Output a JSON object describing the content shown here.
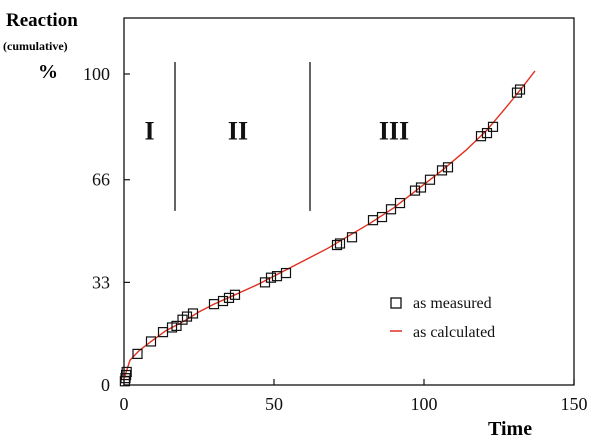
{
  "chart_data": {
    "type": "scatter",
    "ylabel_lines": [
      "Reaction",
      "(cumulative)",
      "%"
    ],
    "xlabel": "Time",
    "xlim": [
      0,
      150
    ],
    "ylim": [
      0,
      100
    ],
    "x_ticks": [
      0,
      50,
      100,
      150
    ],
    "y_ticks": [
      0,
      33,
      66,
      100
    ],
    "x_tick_labels": [
      "0",
      "50",
      "100",
      "150"
    ],
    "y_tick_labels": [
      "0",
      "33",
      "66",
      "100"
    ],
    "regions": [
      {
        "label": "I",
        "label_x": 8.5,
        "label_y": 79
      },
      {
        "label": "II",
        "label_x": 38,
        "label_y": 79
      },
      {
        "label": "III",
        "label_x": 90,
        "label_y": 79
      }
    ],
    "region_boundaries": [
      {
        "x": 17,
        "y_start": 56,
        "y_end": 100
      },
      {
        "x": 62,
        "y_start": 56,
        "y_end": 100
      }
    ],
    "legend": {
      "position": "lower-right",
      "entries": [
        {
          "label": "as measured",
          "marker": "square"
        },
        {
          "label": "as calculated",
          "marker": "line"
        }
      ]
    },
    "series": [
      {
        "name": "as measured",
        "marker": "square",
        "color": "#111111",
        "points": [
          [
            0.3,
            1.2
          ],
          [
            0.5,
            2.2
          ],
          [
            0.7,
            3.2
          ],
          [
            0.9,
            4.2
          ],
          [
            4.5,
            10
          ],
          [
            9,
            14
          ],
          [
            13,
            17
          ],
          [
            16,
            18.5
          ],
          [
            17.5,
            19
          ],
          [
            19.5,
            21
          ],
          [
            21,
            22
          ],
          [
            23,
            23
          ],
          [
            30,
            26
          ],
          [
            33,
            27
          ],
          [
            35,
            28
          ],
          [
            37,
            29
          ],
          [
            47,
            33
          ],
          [
            49,
            34.5
          ],
          [
            51,
            35
          ],
          [
            54,
            36
          ],
          [
            71,
            45
          ],
          [
            72,
            45.5
          ],
          [
            76,
            47.5
          ],
          [
            83,
            53
          ],
          [
            86,
            54
          ],
          [
            89,
            56.5
          ],
          [
            92,
            58.5
          ],
          [
            97,
            62.5
          ],
          [
            99,
            63.5
          ],
          [
            102,
            66
          ],
          [
            106,
            69
          ],
          [
            108,
            70
          ],
          [
            119,
            80
          ],
          [
            121,
            81
          ],
          [
            123,
            83
          ],
          [
            131,
            94
          ],
          [
            132,
            95
          ]
        ]
      },
      {
        "name": "as calculated",
        "type": "line",
        "color": "#e0301e",
        "points": [
          [
            0,
            2
          ],
          [
            2,
            8
          ],
          [
            5,
            11
          ],
          [
            9,
            14
          ],
          [
            14,
            17.5
          ],
          [
            20,
            20.5
          ],
          [
            25,
            23.5
          ],
          [
            30,
            26
          ],
          [
            37,
            29
          ],
          [
            45,
            32.5
          ],
          [
            52,
            36
          ],
          [
            60,
            40
          ],
          [
            68,
            44
          ],
          [
            75,
            48
          ],
          [
            82,
            52
          ],
          [
            90,
            57
          ],
          [
            98,
            63
          ],
          [
            106,
            69
          ],
          [
            114,
            75.5
          ],
          [
            121,
            82
          ],
          [
            128,
            90
          ],
          [
            133,
            96
          ],
          [
            137,
            101
          ]
        ]
      }
    ]
  }
}
